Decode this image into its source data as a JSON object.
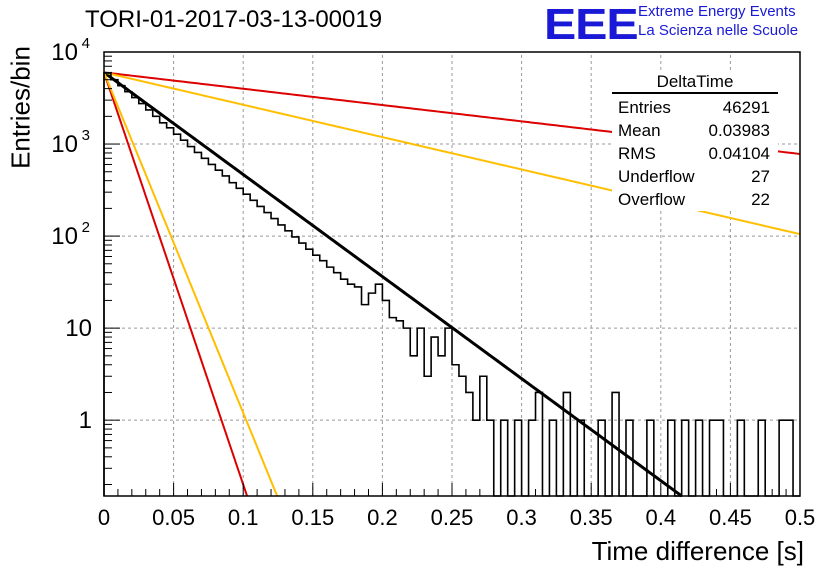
{
  "title": "TORI-01-2017-03-13-00019",
  "logo": {
    "text": "EEE",
    "line1": "Extreme Energy Events",
    "line2": "La Scienza nelle Scuole"
  },
  "stats": {
    "name": "DeltaTime",
    "rows": [
      {
        "label": "Entries",
        "value": "46291"
      },
      {
        "label": "Mean",
        "value": "0.03983"
      },
      {
        "label": "RMS",
        "value": "0.04104"
      },
      {
        "label": "Underflow",
        "value": "27"
      },
      {
        "label": "Overflow",
        "value": "22"
      }
    ]
  },
  "chart_data": {
    "type": "line",
    "title": "TORI-01-2017-03-13-00019",
    "xlabel": "Time difference [s]",
    "ylabel": "Entries/bin",
    "xlim": [
      0,
      0.5
    ],
    "ylim": [
      0.15,
      10000
    ],
    "yscale": "log",
    "grid": true,
    "xticks": [
      "0",
      "0.05",
      "0.1",
      "0.15",
      "0.2",
      "0.25",
      "0.3",
      "0.35",
      "0.4",
      "0.45",
      "0.5"
    ],
    "yticks": [
      "1",
      "10",
      "10^2",
      "10^3",
      "10^4"
    ],
    "histogram": {
      "bin_width": 0.005,
      "values": [
        5900,
        5000,
        4300,
        3700,
        3200,
        2750,
        2350,
        2000,
        1700,
        1500,
        1280,
        1100,
        940,
        810,
        700,
        600,
        520,
        450,
        380,
        330,
        285,
        245,
        210,
        180,
        155,
        132,
        114,
        98,
        84,
        72,
        62,
        54,
        46,
        40,
        34,
        30,
        28,
        18,
        24,
        30,
        20,
        13,
        12,
        10,
        5,
        10,
        3,
        8,
        5,
        10,
        4,
        3,
        2,
        1,
        3,
        1,
        0,
        1,
        0,
        1,
        0,
        1,
        2,
        0,
        1,
        0,
        2,
        0,
        1,
        0,
        0,
        1,
        0,
        2,
        0,
        1,
        0,
        0,
        1,
        0,
        0,
        1,
        0,
        1,
        0,
        1,
        0,
        1,
        1,
        0,
        0,
        1,
        0,
        0,
        1,
        0,
        0,
        1,
        1,
        0
      ]
    },
    "series": [
      {
        "color": "#000000",
        "y0": 6000,
        "y_at_0_4": 0.22
      },
      {
        "color": "#dd0000",
        "y0": 6000,
        "y_at_0_5": 780
      },
      {
        "color": "#ffbf00",
        "y0": 6000,
        "y_at_0_5": 105
      },
      {
        "color": "#dd0000",
        "y0": 6000,
        "y_at_0_1": 0.2
      },
      {
        "color": "#ffbf00",
        "y0": 6000,
        "y_at_0_1": 1.2
      }
    ]
  }
}
